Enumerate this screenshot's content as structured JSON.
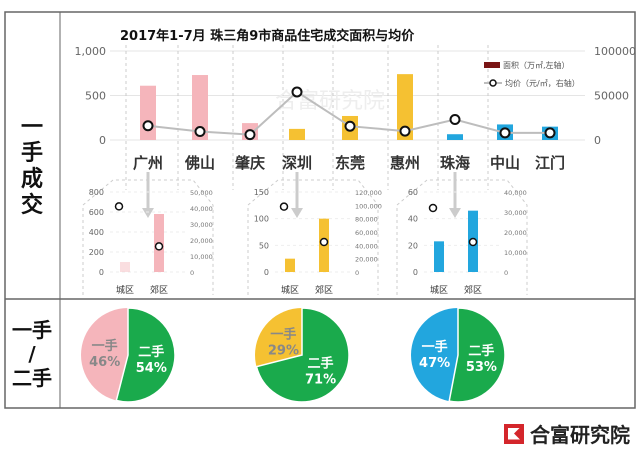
{
  "side_labels": {
    "top": "一手成交",
    "bottom_1": "一手",
    "bottom_2": "/",
    "bottom_3": "二手"
  },
  "logo": {
    "text": "合富研究院",
    "watermark": "合富研究院"
  },
  "colors": {
    "pink": "#f5b5bb",
    "yellow": "#f5c132",
    "blue": "#22a6de",
    "green": "#1aaa4c",
    "line": "#bdbdbd",
    "legend_bar": "#7a1515"
  },
  "chart_data": [
    {
      "type": "bar+line",
      "title": "2017年1-7月 珠三角9市商品住宅成交面积与均价",
      "categories": [
        "广州",
        "佛山",
        "肇庆",
        "深圳",
        "东莞",
        "惠州",
        "珠海",
        "中山",
        "江门"
      ],
      "category_colors": [
        "pink",
        "pink",
        "pink",
        "yellow",
        "yellow",
        "yellow",
        "blue",
        "blue",
        "blue"
      ],
      "series": [
        {
          "name": "面积（万㎡,左轴）",
          "type": "bar",
          "values": [
            610,
            730,
            190,
            125,
            270,
            740,
            65,
            175,
            150
          ]
        },
        {
          "name": "均价（元/㎡，右轴）",
          "type": "line",
          "values": [
            16000,
            9500,
            6000,
            54000,
            15500,
            10000,
            23000,
            8000,
            8000
          ]
        }
      ],
      "ylim": [
        0,
        1000
      ],
      "yticks": [
        "0",
        "500",
        "1,000"
      ],
      "y2lim": [
        0,
        100000
      ],
      "y2ticks": [
        "0",
        "50000",
        "100000"
      ],
      "legend": "top-right"
    },
    {
      "type": "bar+scatter",
      "city": "广州",
      "categories": [
        "城区",
        "郊区"
      ],
      "color": "pink",
      "bar": [
        100,
        580
      ],
      "price": [
        41000,
        16000
      ],
      "ylim": [
        0,
        800
      ],
      "yticks": [
        "0",
        "200",
        "400",
        "600",
        "800"
      ],
      "y2lim": [
        0,
        50000
      ],
      "y2ticks": [
        "0",
        "10,000",
        "20,000",
        "30,000",
        "40,000",
        "50,000"
      ]
    },
    {
      "type": "bar+scatter",
      "city": "深圳",
      "categories": [
        "城区",
        "郊区"
      ],
      "color": "yellow",
      "bar": [
        25,
        100
      ],
      "price": [
        98000,
        45000
      ],
      "ylim": [
        0,
        150
      ],
      "yticks": [
        "0",
        "50",
        "100",
        "150"
      ],
      "y2lim": [
        0,
        120000
      ],
      "y2ticks": [
        "0",
        "20,000",
        "40,000",
        "60,000",
        "80,000",
        "100,000",
        "120,000"
      ]
    },
    {
      "type": "bar+scatter",
      "city": "珠海",
      "categories": [
        "城区",
        "郊区"
      ],
      "color": "blue",
      "bar": [
        23,
        46
      ],
      "price": [
        32000,
        15000
      ],
      "ylim": [
        0,
        60
      ],
      "yticks": [
        "0",
        "20",
        "40",
        "60"
      ],
      "y2lim": [
        0,
        40000
      ],
      "y2ticks": [
        "0",
        "10,000",
        "20,000",
        "30,000",
        "40,000"
      ]
    },
    {
      "type": "pie",
      "city": "广州",
      "labels": [
        "一手",
        "二手"
      ],
      "values": [
        46,
        54
      ],
      "texts": [
        "46%",
        "54%"
      ],
      "color": "pink"
    },
    {
      "type": "pie",
      "city": "深圳",
      "labels": [
        "一手",
        "二手"
      ],
      "values": [
        29,
        71
      ],
      "texts": [
        "29%",
        "71%"
      ],
      "color": "yellow"
    },
    {
      "type": "pie",
      "city": "珠海",
      "labels": [
        "一手",
        "二手"
      ],
      "values": [
        47,
        53
      ],
      "texts": [
        "47%",
        "53%"
      ],
      "color": "blue"
    }
  ]
}
